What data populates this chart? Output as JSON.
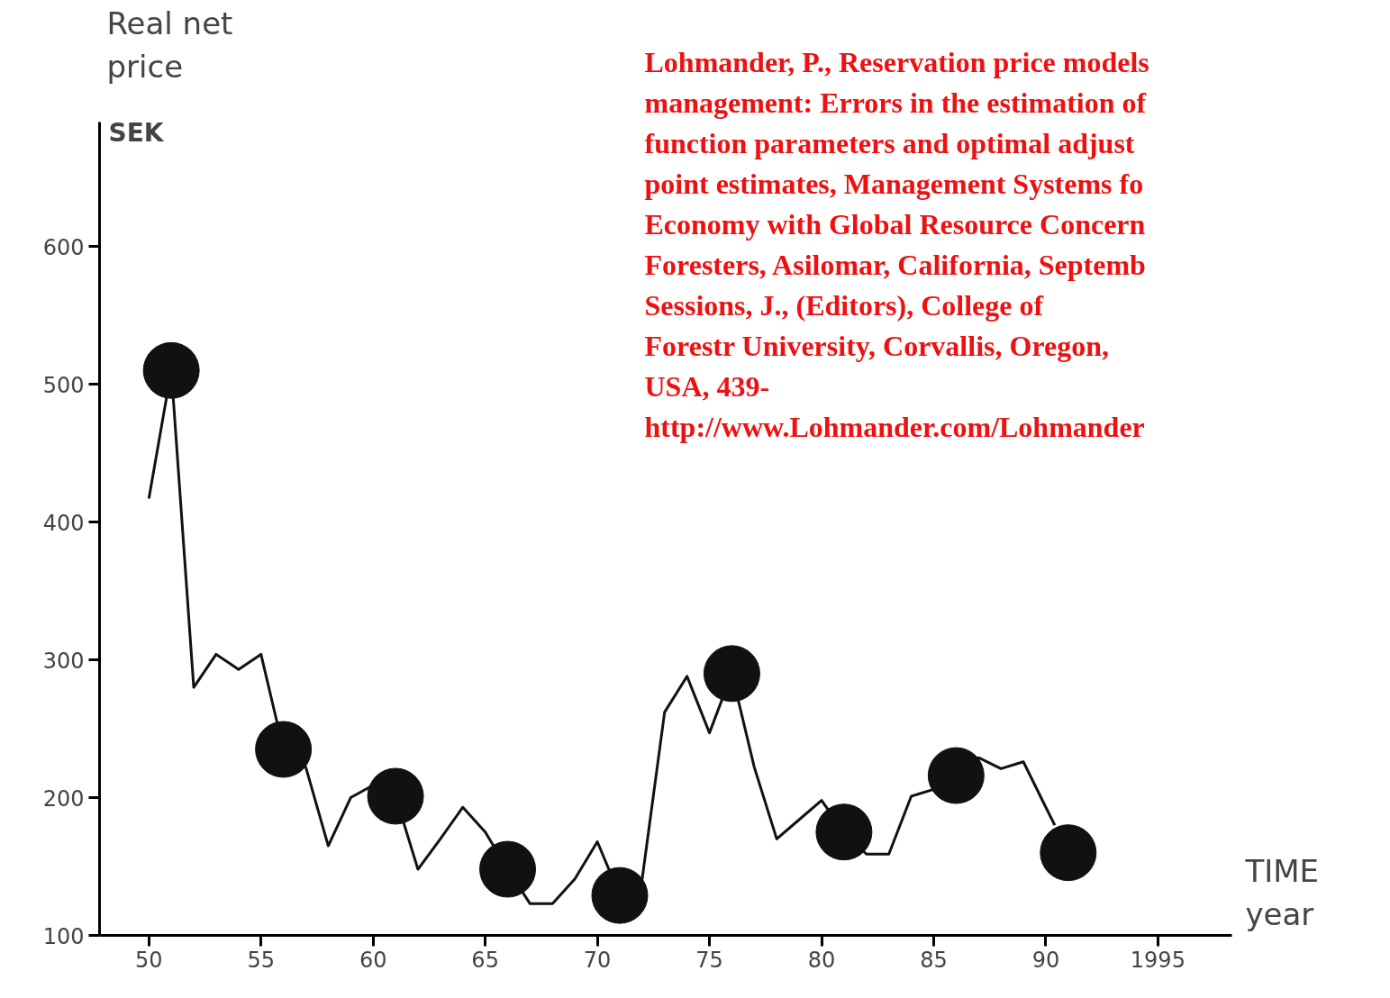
{
  "chart_data": {
    "type": "line",
    "ylabel": "Real net price",
    "xlabel": "TIME\nyear",
    "annotations": [
      "SEK",
      "Lohmander, P., Reservation price models management: Errors in the estimation of function parameters and optimal adjust point estimates, Management Systems fo Economy with Global Resource Concern Foresters, Asilomar, California, Septemb Sessions, J., (Editors), College of Forestr University, Corvallis, Oregon, USA, 439- http://www.Lohmander.com/Lohmander"
    ],
    "xlim": [
      1947.8,
      1998.3
    ],
    "ylim": [
      100,
      690
    ],
    "xticks": [
      {
        "value": 1950,
        "label": "50"
      },
      {
        "value": 1955,
        "label": "55"
      },
      {
        "value": 1960,
        "label": "60"
      },
      {
        "value": 1965,
        "label": "65"
      },
      {
        "value": 1970,
        "label": "70"
      },
      {
        "value": 1975,
        "label": "75"
      },
      {
        "value": 1980,
        "label": "80"
      },
      {
        "value": 1985,
        "label": "85"
      },
      {
        "value": 1990,
        "label": "90"
      },
      1995
    ],
    "yticks": [
      100,
      200,
      300,
      400,
      500,
      600
    ],
    "grid": false,
    "series": [
      {
        "color": "#111111",
        "line_style": "solid",
        "x": [
          1950,
          1951,
          1952,
          1953,
          1954,
          1955,
          1956,
          1957,
          1958,
          1959,
          1960,
          1961,
          1962,
          1963,
          1964,
          1965,
          1966,
          1967,
          1968,
          1969,
          1970,
          1971,
          1972,
          1973,
          1974,
          1975,
          1976,
          1977,
          1978,
          1979,
          1980,
          1981,
          1982,
          1983,
          1984,
          1985,
          1986,
          1987,
          1988,
          1989,
          1990,
          1990.4
        ],
        "values": [
          417,
          510,
          280,
          304,
          293,
          304,
          235,
          222,
          165,
          200,
          209,
          201,
          148,
          170,
          193,
          175,
          148,
          123,
          123,
          141,
          168,
          129,
          141,
          262,
          288,
          247,
          290,
          222,
          170,
          184,
          198,
          175,
          159,
          159,
          201,
          206,
          216,
          229,
          221,
          226,
          193,
          180
        ]
      },
      {
        "type": "scatter",
        "color": "#111111",
        "marker": "circle",
        "x": [
          1951,
          1956,
          1961,
          1966,
          1971,
          1976,
          1981,
          1986,
          1991
        ],
        "values": [
          510,
          235,
          201,
          148,
          129,
          290,
          175,
          216,
          160
        ]
      }
    ]
  }
}
